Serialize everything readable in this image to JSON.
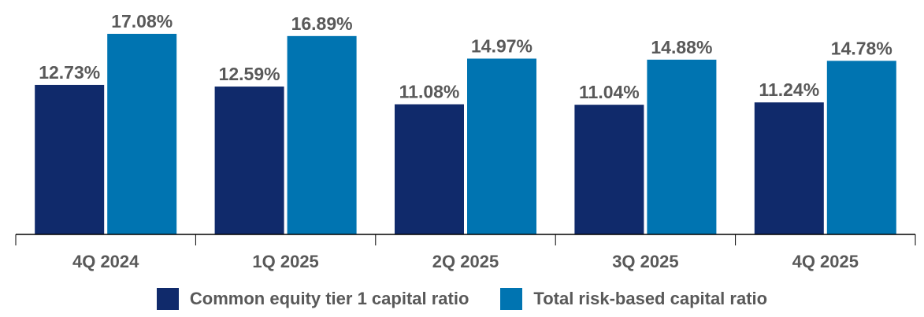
{
  "chart_data": {
    "type": "bar",
    "categories": [
      "4Q 2024",
      "1Q 2025",
      "2Q 2025",
      "3Q 2025",
      "4Q 2025"
    ],
    "series": [
      {
        "name": "Common equity tier 1 capital ratio",
        "values": [
          12.73,
          12.59,
          11.08,
          11.04,
          11.24
        ],
        "labels": [
          "12.73%",
          "12.59%",
          "11.08%",
          "11.04%",
          "11.24%"
        ],
        "color": "#102A6B"
      },
      {
        "name": "Total risk-based capital ratio",
        "values": [
          17.08,
          16.89,
          14.97,
          14.88,
          14.78
        ],
        "labels": [
          "17.08%",
          "16.89%",
          "14.97%",
          "14.88%",
          "14.78%"
        ],
        "color": "#0074B1"
      }
    ],
    "ylim": [
      0,
      17.08
    ],
    "grid": false,
    "legend": "bottom"
  }
}
